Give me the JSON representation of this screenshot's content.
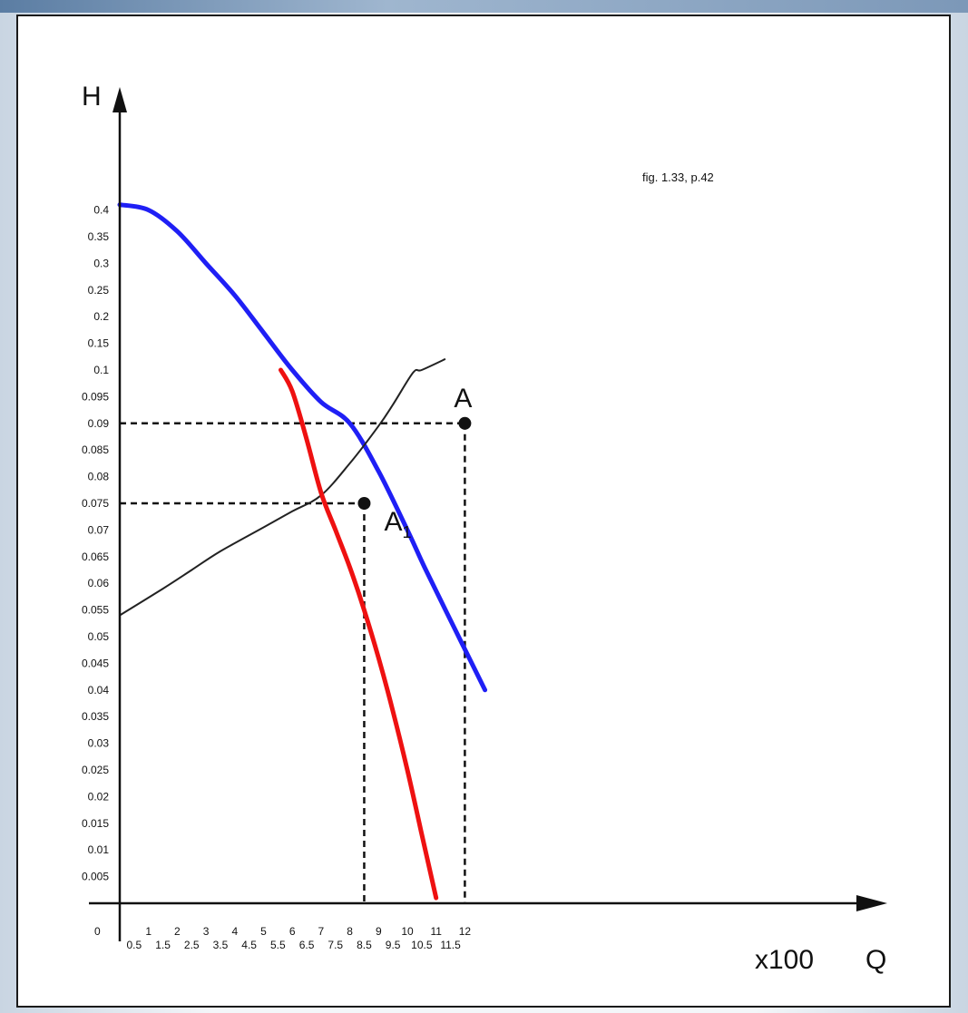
{
  "figure_reference": "fig. 1.33,  p.42",
  "colors": {
    "pump_curve": "#1f1ff5",
    "modified_pump_curve": "#ee1111",
    "system_curve": "#222222",
    "guides": "#111111"
  },
  "chart_data": {
    "type": "line",
    "title": "",
    "xlabel": "Q",
    "x_unit": "x100",
    "ylabel": "H",
    "origin_label": "0",
    "grid": false,
    "legend": "none",
    "xlim": [
      0,
      12.5
    ],
    "y_scale": "categorical (nonuniform tick spacing)",
    "y_ticks": [
      "0.005",
      "0.01",
      "0.015",
      "0.02",
      "0.025",
      "0.03",
      "0.035",
      "0.04",
      "0.045",
      "0.05",
      "0.055",
      "0.06",
      "0.065",
      "0.07",
      "0.075",
      "0.08",
      "0.085",
      "0.09",
      "0.095",
      "0.1",
      "0.15",
      "0.2",
      "0.25",
      "0.3",
      "0.35",
      "0.4"
    ],
    "x_ticks_upper": [
      "1",
      "2",
      "3",
      "4",
      "5",
      "6",
      "7",
      "8",
      "9",
      "10",
      "11",
      "12"
    ],
    "x_ticks_lower": [
      "0.5",
      "1.5",
      "2.5",
      "3.5",
      "4.5",
      "5.5",
      "6.5",
      "7.5",
      "8.5",
      "9.5",
      "10.5",
      "11.5"
    ],
    "series": [
      {
        "key": "pump",
        "points": [
          [
            0,
            0.41
          ],
          [
            1,
            0.4
          ],
          [
            2,
            0.36
          ],
          [
            3,
            0.3
          ],
          [
            4,
            0.24
          ],
          [
            5,
            0.17
          ],
          [
            6,
            0.1
          ],
          [
            7,
            0.094
          ],
          [
            8,
            0.09
          ],
          [
            9,
            0.081
          ],
          [
            10,
            0.07
          ],
          [
            10.6,
            0.063
          ],
          [
            11.6,
            0.052
          ],
          [
            12.7,
            0.04
          ]
        ]
      },
      {
        "key": "system",
        "points": [
          [
            0,
            0.054
          ],
          [
            1.5,
            0.059
          ],
          [
            2.5,
            0.0625
          ],
          [
            3.5,
            0.066
          ],
          [
            5,
            0.0705
          ],
          [
            6,
            0.0735
          ],
          [
            7,
            0.0765
          ],
          [
            8,
            0.0825
          ],
          [
            9,
            0.0895
          ],
          [
            9.5,
            0.0935
          ],
          [
            10.2,
            0.0995
          ],
          [
            10.5,
            0.1
          ],
          [
            11.3,
            0.12
          ]
        ]
      },
      {
        "key": "modified_pump",
        "points": [
          [
            5.6,
            0.1
          ],
          [
            6,
            0.096
          ],
          [
            6.5,
            0.087
          ],
          [
            7,
            0.077
          ],
          [
            7.5,
            0.07
          ],
          [
            8,
            0.063
          ],
          [
            8.5,
            0.055
          ],
          [
            9,
            0.046
          ],
          [
            9.5,
            0.036
          ],
          [
            10,
            0.025
          ],
          [
            10.5,
            0.013
          ],
          [
            11,
            0.001
          ]
        ]
      }
    ],
    "points": [
      {
        "label": "A",
        "x": 12,
        "y": 0.09
      },
      {
        "label": "A",
        "subscript": "1",
        "x": 8.5,
        "y": 0.075
      }
    ]
  }
}
